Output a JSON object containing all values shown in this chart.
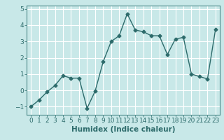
{
  "x": [
    0,
    1,
    2,
    3,
    4,
    5,
    6,
    7,
    8,
    9,
    10,
    11,
    12,
    13,
    14,
    15,
    16,
    17,
    18,
    19,
    20,
    21,
    22,
    23
  ],
  "y": [
    -1,
    -0.6,
    -0.1,
    0.3,
    0.9,
    0.75,
    0.75,
    -1.1,
    -0.05,
    1.75,
    3.0,
    3.35,
    4.7,
    3.7,
    3.6,
    3.35,
    3.35,
    2.2,
    3.15,
    3.25,
    1.0,
    0.85,
    0.7,
    3.75
  ],
  "line_color": "#2d6b6b",
  "marker": "D",
  "markersize": 2.5,
  "linewidth": 1.0,
  "xlabel": "Humidex (Indice chaleur)",
  "xlim": [
    -0.5,
    23.5
  ],
  "ylim": [
    -1.5,
    5.2
  ],
  "yticks": [
    -1,
    0,
    1,
    2,
    3,
    4,
    5
  ],
  "xticks": [
    0,
    1,
    2,
    3,
    4,
    5,
    6,
    7,
    8,
    9,
    10,
    11,
    12,
    13,
    14,
    15,
    16,
    17,
    18,
    19,
    20,
    21,
    22,
    23
  ],
  "bg_color": "#c8e8e8",
  "plot_bg_color": "#c8e8e8",
  "grid_color": "#ffffff",
  "tick_fontsize": 6.5,
  "label_fontsize": 7.5,
  "xlabel_fontweight": "bold",
  "spine_color": "#4a8a8a"
}
